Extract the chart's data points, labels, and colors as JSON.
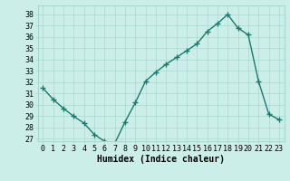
{
  "x": [
    0,
    1,
    2,
    3,
    4,
    5,
    6,
    7,
    8,
    9,
    10,
    11,
    12,
    13,
    14,
    15,
    16,
    17,
    18,
    19,
    20,
    21,
    22,
    23
  ],
  "y": [
    31.5,
    30.5,
    29.7,
    29.0,
    28.4,
    27.4,
    26.8,
    26.6,
    28.5,
    30.2,
    32.1,
    32.9,
    33.6,
    34.2,
    34.8,
    35.4,
    36.5,
    37.2,
    38.0,
    36.8,
    36.2,
    32.1,
    29.2,
    28.7
  ],
  "line_color": "#1a7a6e",
  "marker": "+",
  "marker_size": 4,
  "marker_color": "#1a7a6e",
  "bg_color": "#cceee8",
  "grid_color": "#aad8d2",
  "xlabel": "Humidex (Indice chaleur)",
  "xlim": [
    -0.5,
    23.5
  ],
  "ylim": [
    26.8,
    38.8
  ],
  "yticks": [
    27,
    28,
    29,
    30,
    31,
    32,
    33,
    34,
    35,
    36,
    37,
    38
  ],
  "xticks": [
    0,
    1,
    2,
    3,
    4,
    5,
    6,
    7,
    8,
    9,
    10,
    11,
    12,
    13,
    14,
    15,
    16,
    17,
    18,
    19,
    20,
    21,
    22,
    23
  ],
  "xlabel_fontsize": 7,
  "tick_fontsize": 6,
  "linewidth": 1.0
}
